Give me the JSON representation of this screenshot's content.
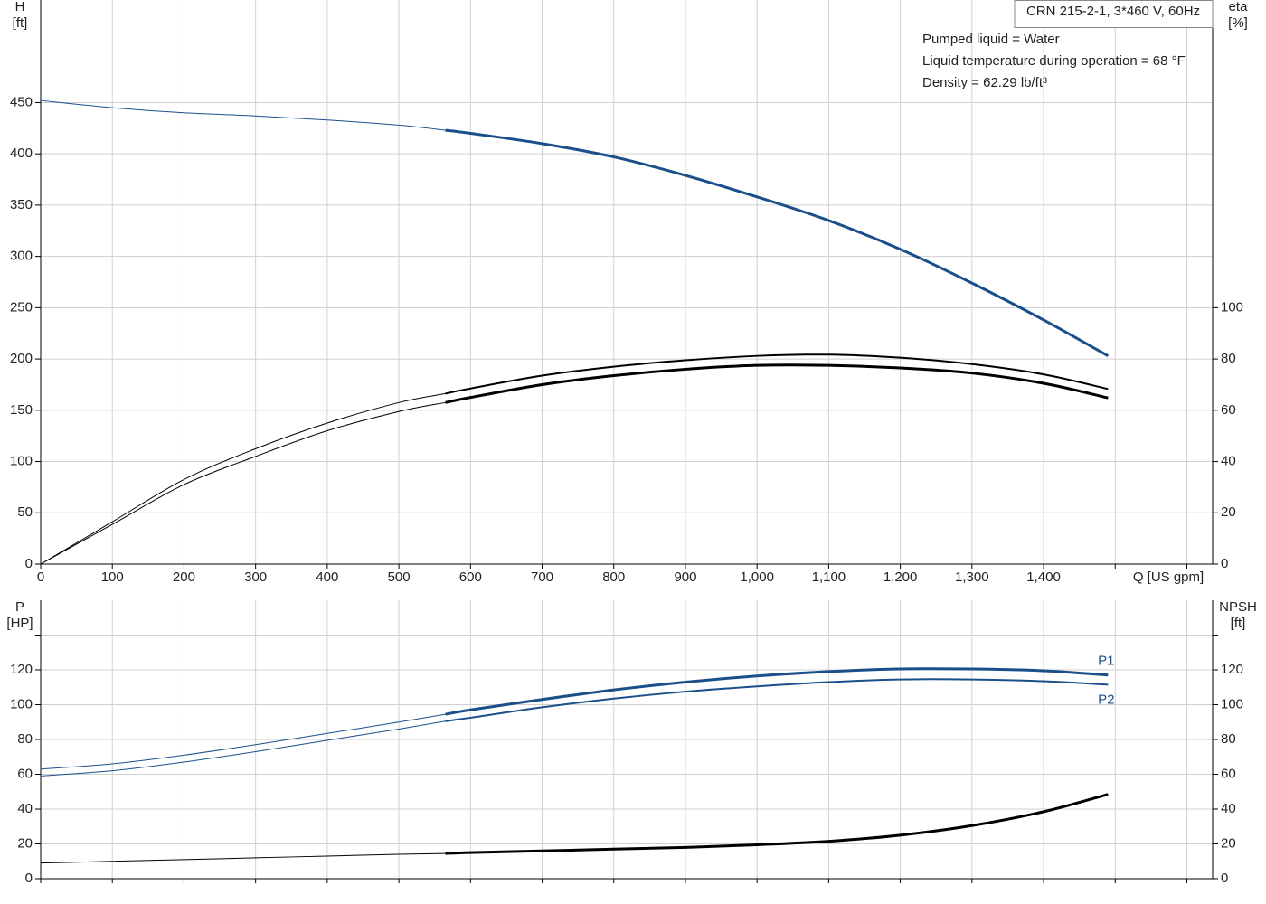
{
  "chart_data": [
    {
      "type": "line",
      "title": "CRN 215-2-1, 3*460 V, 60Hz",
      "annotations": [
        "Pumped liquid = Water",
        "Liquid temperature during operation = 68 °F",
        "Density = 62.29 lb/ft³"
      ],
      "xlabel": "Q [US gpm]",
      "ylabel": "H",
      "yunit": "[ft]",
      "y2label": "eta",
      "y2unit": "[%]",
      "grid": true,
      "xlim": [
        0,
        1636
      ],
      "ylim": [
        0,
        550
      ],
      "y2lim": [
        0,
        220
      ],
      "xticks": [
        0,
        100,
        200,
        300,
        400,
        500,
        600,
        700,
        800,
        900,
        {
          "value": 1000,
          "label": "1,000"
        },
        {
          "value": 1100,
          "label": "1,100"
        },
        {
          "value": 1200,
          "label": "1,200"
        },
        {
          "value": 1300,
          "label": "1,300"
        },
        {
          "value": 1400,
          "label": "1,400"
        },
        {
          "value": 1500,
          "label": null
        },
        {
          "value": 1600,
          "label": null
        }
      ],
      "yticks": [
        0,
        50,
        100,
        150,
        200,
        250,
        300,
        350,
        400,
        450
      ],
      "y2ticks": [
        0,
        20,
        40,
        60,
        80,
        100
      ],
      "x": [
        0,
        100,
        200,
        300,
        400,
        500,
        565,
        600,
        700,
        800,
        900,
        1000,
        1100,
        1200,
        1300,
        1400,
        1490
      ],
      "series": [
        {
          "color": "#1b4f8a",
          "width": 1,
          "axis": "y",
          "values": [
            452,
            445,
            440,
            437,
            433,
            428,
            423,
            null,
            null,
            null,
            null,
            null,
            null,
            null,
            null,
            null,
            null
          ]
        },
        {
          "color": "#1b4f8a",
          "width": 3,
          "axis": "y",
          "values": [
            null,
            null,
            null,
            null,
            null,
            null,
            423,
            420,
            410,
            397,
            379,
            358,
            335,
            307,
            274,
            238,
            203
          ]
        },
        {
          "color": "#000000",
          "width": 1,
          "axis": "y2",
          "values": [
            0,
            16.5,
            33,
            45,
            55,
            63,
            66.5,
            null,
            null,
            null,
            null,
            null,
            null,
            null,
            null,
            null,
            null
          ]
        },
        {
          "color": "#000000",
          "width": 2,
          "axis": "y2",
          "values": [
            null,
            null,
            null,
            null,
            null,
            null,
            66.5,
            68.5,
            73.5,
            77,
            79.5,
            81.2,
            81.7,
            80.5,
            78,
            74,
            68.3
          ]
        },
        {
          "color": "#000000",
          "width": 1,
          "axis": "y2",
          "values": [
            0,
            15.5,
            31,
            42,
            52,
            59.5,
            63,
            null,
            null,
            null,
            null,
            null,
            null,
            null,
            null,
            null,
            null
          ]
        },
        {
          "color": "#000000",
          "width": 3,
          "axis": "y2",
          "values": [
            null,
            null,
            null,
            null,
            null,
            null,
            63,
            65,
            70,
            73.5,
            76,
            77.5,
            77.5,
            76.5,
            74.5,
            70.5,
            64.8
          ]
        }
      ]
    },
    {
      "type": "line",
      "ylabel": "P",
      "yunit": "[HP]",
      "y2label": "NPSH",
      "y2unit": "[ft]",
      "grid": true,
      "xtick_labels": false,
      "xlim": [
        0,
        1636
      ],
      "ylim": [
        0,
        160
      ],
      "y2lim": [
        0,
        160
      ],
      "xticks": [
        0,
        100,
        200,
        300,
        400,
        500,
        600,
        700,
        800,
        900,
        1000,
        1100,
        1200,
        1300,
        1400,
        1500,
        1600
      ],
      "yticks": [
        0,
        20,
        40,
        60,
        80,
        100,
        120,
        {
          "value": 140,
          "label": null
        }
      ],
      "y2ticks": [
        0,
        20,
        40,
        60,
        80,
        100,
        120,
        {
          "value": 140,
          "label": null
        }
      ],
      "x": [
        0,
        100,
        200,
        300,
        400,
        500,
        565,
        600,
        700,
        800,
        900,
        1000,
        1100,
        1200,
        1300,
        1400,
        1490
      ],
      "series": [
        {
          "color": "#1b4f8a",
          "width": 1,
          "axis": "y",
          "values": [
            63,
            66,
            71,
            77,
            83.5,
            90,
            94.5,
            null,
            null,
            null,
            null,
            null,
            null,
            null,
            null,
            null,
            null
          ]
        },
        {
          "name": "P1",
          "color": "#1b4f8a",
          "width": 3,
          "axis": "y",
          "values": [
            null,
            null,
            null,
            null,
            null,
            null,
            94.5,
            97,
            103,
            108.5,
            113,
            116.5,
            119,
            120.5,
            120.5,
            119.5,
            117
          ]
        },
        {
          "color": "#1b4f8a",
          "width": 1,
          "axis": "y",
          "values": [
            59,
            62,
            67,
            73,
            79.5,
            86,
            90.5,
            null,
            null,
            null,
            null,
            null,
            null,
            null,
            null,
            null,
            null
          ]
        },
        {
          "name": "P2",
          "color": "#1b4f8a",
          "width": 2,
          "axis": "y",
          "values": [
            null,
            null,
            null,
            null,
            null,
            null,
            90.5,
            92.5,
            98.5,
            103.5,
            107.5,
            110.5,
            113,
            114.5,
            114.5,
            113.5,
            111.5
          ]
        },
        {
          "color": "#000000",
          "width": 1,
          "axis": "y2",
          "values": [
            9,
            10,
            11,
            12,
            13,
            14,
            14.5,
            null,
            null,
            null,
            null,
            null,
            null,
            null,
            null,
            null,
            null
          ]
        },
        {
          "color": "#000000",
          "width": 3,
          "axis": "y2",
          "values": [
            null,
            null,
            null,
            null,
            null,
            null,
            14.5,
            15,
            16,
            17,
            18,
            19.5,
            21.5,
            25,
            30.5,
            38.5,
            48.5
          ]
        }
      ]
    }
  ]
}
